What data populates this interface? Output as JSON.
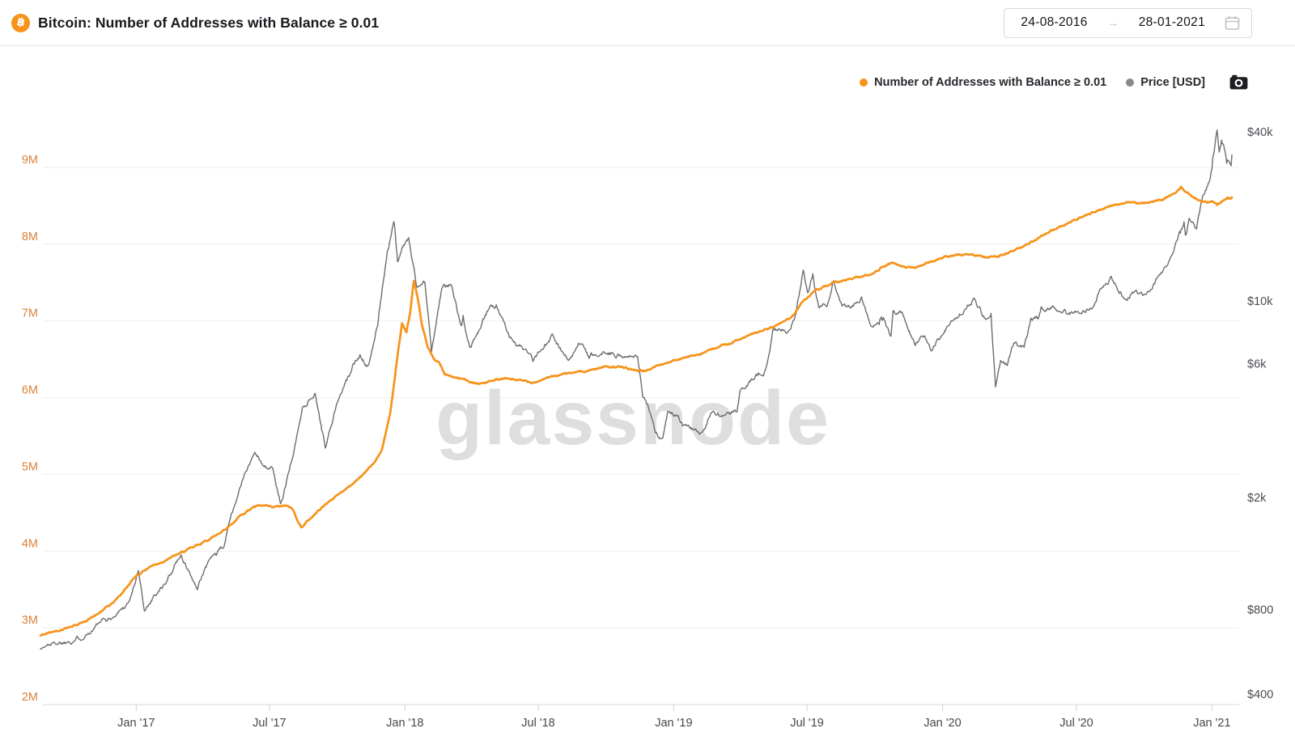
{
  "header": {
    "title": "Bitcoin: Number of Addresses with Balance ≥ 0.01",
    "date_range": {
      "start": "24-08-2016",
      "end": "28-01-2021",
      "arrow": "→"
    }
  },
  "legend": [
    {
      "label": "Number of Addresses with Balance ≥ 0.01",
      "color": "#f7931a"
    },
    {
      "label": "Price [USD]",
      "color": "#8a8a8e"
    }
  ],
  "watermark": "glassnode",
  "chart_data": {
    "type": "line",
    "title": "Bitcoin: Number of Addresses with Balance ≥ 0.01",
    "x_range": [
      "2016-08-24",
      "2021-01-28"
    ],
    "grid": "horizontal",
    "x_ticks": [
      {
        "date": "2017-01-01",
        "label": "Jan '17"
      },
      {
        "date": "2017-07-01",
        "label": "Jul '17"
      },
      {
        "date": "2018-01-01",
        "label": "Jan '18"
      },
      {
        "date": "2018-07-01",
        "label": "Jul '18"
      },
      {
        "date": "2019-01-01",
        "label": "Jan '19"
      },
      {
        "date": "2019-07-01",
        "label": "Jul '19"
      },
      {
        "date": "2020-01-01",
        "label": "Jan '20"
      },
      {
        "date": "2020-07-01",
        "label": "Jul '20"
      },
      {
        "date": "2021-01-01",
        "label": "Jan '21"
      }
    ],
    "left_axis": {
      "scale": "linear",
      "unit": "millions of addresses",
      "range": [
        2,
        9.6
      ],
      "label_color": "#d9813a",
      "ticks": [
        {
          "value": 9,
          "label": "9M"
        },
        {
          "value": 8,
          "label": "8M"
        },
        {
          "value": 7,
          "label": "7M"
        },
        {
          "value": 6,
          "label": "6M"
        },
        {
          "value": 5,
          "label": "5M"
        },
        {
          "value": 4,
          "label": "4M"
        },
        {
          "value": 3,
          "label": "3M"
        },
        {
          "value": 2,
          "label": "2M"
        }
      ]
    },
    "right_axis": {
      "scale": "log",
      "unit": "USD",
      "range": [
        400,
        45000
      ],
      "label_color": "#4a4d52",
      "ticks": [
        {
          "value": 40000,
          "label": "$40k"
        },
        {
          "value": 10000,
          "label": "$10k"
        },
        {
          "value": 6000,
          "label": "$6k"
        },
        {
          "value": 2000,
          "label": "$2k"
        },
        {
          "value": 800,
          "label": "$800"
        },
        {
          "value": 400,
          "label": "$400"
        }
      ]
    },
    "series": [
      {
        "name": "Number of Addresses with Balance ≥ 0.01",
        "axis": "left",
        "color": "#f7931a",
        "width": 2.7,
        "unit": "millions",
        "points": [
          [
            "2016-08-24",
            2.9
          ],
          [
            "2016-09-10",
            2.95
          ],
          [
            "2016-10-01",
            3.01
          ],
          [
            "2016-10-20",
            3.07
          ],
          [
            "2016-11-10",
            3.18
          ],
          [
            "2016-12-01",
            3.33
          ],
          [
            "2016-12-15",
            3.48
          ],
          [
            "2017-01-01",
            3.68
          ],
          [
            "2017-01-20",
            3.8
          ],
          [
            "2017-02-10",
            3.88
          ],
          [
            "2017-03-01",
            3.97
          ],
          [
            "2017-03-20",
            4.05
          ],
          [
            "2017-04-01",
            4.11
          ],
          [
            "2017-04-20",
            4.21
          ],
          [
            "2017-05-10",
            4.35
          ],
          [
            "2017-05-25",
            4.48
          ],
          [
            "2017-06-08",
            4.57
          ],
          [
            "2017-06-20",
            4.59
          ],
          [
            "2017-07-05",
            4.57
          ],
          [
            "2017-07-25",
            4.59
          ],
          [
            "2017-08-01",
            4.55
          ],
          [
            "2017-08-13",
            4.31
          ],
          [
            "2017-08-25",
            4.42
          ],
          [
            "2017-09-10",
            4.57
          ],
          [
            "2017-10-01",
            4.73
          ],
          [
            "2017-10-20",
            4.86
          ],
          [
            "2017-11-05",
            5.0
          ],
          [
            "2017-11-20",
            5.15
          ],
          [
            "2017-12-01",
            5.33
          ],
          [
            "2017-12-12",
            5.8
          ],
          [
            "2017-12-22",
            6.55
          ],
          [
            "2017-12-28",
            6.97
          ],
          [
            "2018-01-03",
            6.85
          ],
          [
            "2018-01-08",
            7.1
          ],
          [
            "2018-01-13",
            7.52
          ],
          [
            "2018-01-17",
            7.35
          ],
          [
            "2018-01-24",
            6.95
          ],
          [
            "2018-02-01",
            6.65
          ],
          [
            "2018-02-10",
            6.5
          ],
          [
            "2018-02-17",
            6.45
          ],
          [
            "2018-02-24",
            6.3
          ],
          [
            "2018-03-10",
            6.26
          ],
          [
            "2018-03-25",
            6.23
          ],
          [
            "2018-04-12",
            6.18
          ],
          [
            "2018-05-01",
            6.22
          ],
          [
            "2018-05-20",
            6.25
          ],
          [
            "2018-06-10",
            6.22
          ],
          [
            "2018-06-25",
            6.2
          ],
          [
            "2018-07-10",
            6.25
          ],
          [
            "2018-08-01",
            6.3
          ],
          [
            "2018-08-20",
            6.33
          ],
          [
            "2018-09-10",
            6.36
          ],
          [
            "2018-10-01",
            6.41
          ],
          [
            "2018-10-20",
            6.4
          ],
          [
            "2018-11-08",
            6.36
          ],
          [
            "2018-11-25",
            6.35
          ],
          [
            "2018-12-10",
            6.42
          ],
          [
            "2018-12-25",
            6.46
          ],
          [
            "2019-01-10",
            6.5
          ],
          [
            "2019-02-01",
            6.56
          ],
          [
            "2019-03-01",
            6.65
          ],
          [
            "2019-04-01",
            6.76
          ],
          [
            "2019-05-01",
            6.87
          ],
          [
            "2019-05-20",
            6.94
          ],
          [
            "2019-06-10",
            7.05
          ],
          [
            "2019-06-25",
            7.25
          ],
          [
            "2019-07-10",
            7.38
          ],
          [
            "2019-08-01",
            7.47
          ],
          [
            "2019-08-20",
            7.53
          ],
          [
            "2019-09-10",
            7.57
          ],
          [
            "2019-09-25",
            7.6
          ],
          [
            "2019-10-10",
            7.7
          ],
          [
            "2019-10-25",
            7.76
          ],
          [
            "2019-11-10",
            7.71
          ],
          [
            "2019-11-25",
            7.69
          ],
          [
            "2019-12-10",
            7.76
          ],
          [
            "2019-12-25",
            7.8
          ],
          [
            "2020-01-10",
            7.84
          ],
          [
            "2020-02-01",
            7.87
          ],
          [
            "2020-02-20",
            7.85
          ],
          [
            "2020-03-10",
            7.84
          ],
          [
            "2020-03-20",
            7.86
          ],
          [
            "2020-04-05",
            7.91
          ],
          [
            "2020-04-20",
            7.97
          ],
          [
            "2020-05-05",
            8.05
          ],
          [
            "2020-05-20",
            8.13
          ],
          [
            "2020-06-05",
            8.21
          ],
          [
            "2020-06-20",
            8.28
          ],
          [
            "2020-07-10",
            8.36
          ],
          [
            "2020-08-01",
            8.45
          ],
          [
            "2020-08-20",
            8.51
          ],
          [
            "2020-09-10",
            8.55
          ],
          [
            "2020-09-25",
            8.53
          ],
          [
            "2020-10-10",
            8.55
          ],
          [
            "2020-10-25",
            8.57
          ],
          [
            "2020-11-10",
            8.66
          ],
          [
            "2020-11-20",
            8.75
          ],
          [
            "2020-11-27",
            8.68
          ],
          [
            "2020-12-05",
            8.62
          ],
          [
            "2020-12-15",
            8.57
          ],
          [
            "2020-12-25",
            8.54
          ],
          [
            "2021-01-01",
            8.56
          ],
          [
            "2021-01-08",
            8.51
          ],
          [
            "2021-01-15",
            8.56
          ],
          [
            "2021-01-22",
            8.61
          ],
          [
            "2021-01-28",
            8.61
          ]
        ]
      },
      {
        "name": "Price [USD]",
        "axis": "right",
        "color": "#6d6d70",
        "width": 1.4,
        "unit": "USD",
        "points": [
          [
            "2016-08-24",
            580
          ],
          [
            "2016-09-10",
            610
          ],
          [
            "2016-10-01",
            615
          ],
          [
            "2016-10-25",
            650
          ],
          [
            "2016-11-10",
            712
          ],
          [
            "2016-12-01",
            750
          ],
          [
            "2016-12-23",
            860
          ],
          [
            "2017-01-04",
            1100
          ],
          [
            "2017-01-12",
            790
          ],
          [
            "2017-01-25",
            900
          ],
          [
            "2017-02-10",
            985
          ],
          [
            "2017-02-24",
            1180
          ],
          [
            "2017-03-03",
            1250
          ],
          [
            "2017-03-25",
            940
          ],
          [
            "2017-04-10",
            1200
          ],
          [
            "2017-04-30",
            1330
          ],
          [
            "2017-05-10",
            1750
          ],
          [
            "2017-05-25",
            2300
          ],
          [
            "2017-06-11",
            2900
          ],
          [
            "2017-06-20",
            2650
          ],
          [
            "2017-07-05",
            2550
          ],
          [
            "2017-07-16",
            1900
          ],
          [
            "2017-08-01",
            2750
          ],
          [
            "2017-08-15",
            4200
          ],
          [
            "2017-09-01",
            4700
          ],
          [
            "2017-09-15",
            3000
          ],
          [
            "2017-10-01",
            4350
          ],
          [
            "2017-10-20",
            5600
          ],
          [
            "2017-11-01",
            6450
          ],
          [
            "2017-11-12",
            5900
          ],
          [
            "2017-11-25",
            8200
          ],
          [
            "2017-12-08",
            15000
          ],
          [
            "2017-12-17",
            19200
          ],
          [
            "2017-12-22",
            13800
          ],
          [
            "2017-12-28",
            15500
          ],
          [
            "2018-01-06",
            16800
          ],
          [
            "2018-01-17",
            11200
          ],
          [
            "2018-01-28",
            11700
          ],
          [
            "2018-02-06",
            6600
          ],
          [
            "2018-02-20",
            11100
          ],
          [
            "2018-03-05",
            11400
          ],
          [
            "2018-03-18",
            8200
          ],
          [
            "2018-03-21",
            8900
          ],
          [
            "2018-03-30",
            6850
          ],
          [
            "2018-04-12",
            7900
          ],
          [
            "2018-04-24",
            9300
          ],
          [
            "2018-05-05",
            9700
          ],
          [
            "2018-05-28",
            7200
          ],
          [
            "2018-06-10",
            6750
          ],
          [
            "2018-06-24",
            6100
          ],
          [
            "2018-07-08",
            6750
          ],
          [
            "2018-07-20",
            7650
          ],
          [
            "2018-08-11",
            6150
          ],
          [
            "2018-08-28",
            7050
          ],
          [
            "2018-09-08",
            6250
          ],
          [
            "2018-09-25",
            6450
          ],
          [
            "2018-10-10",
            6550
          ],
          [
            "2018-10-29",
            6350
          ],
          [
            "2018-11-13",
            6350
          ],
          [
            "2018-11-20",
            4550
          ],
          [
            "2018-11-28",
            4150
          ],
          [
            "2018-12-07",
            3400
          ],
          [
            "2018-12-17",
            3250
          ],
          [
            "2018-12-24",
            4050
          ],
          [
            "2019-01-06",
            3900
          ],
          [
            "2019-01-13",
            3600
          ],
          [
            "2019-01-28",
            3480
          ],
          [
            "2019-02-07",
            3400
          ],
          [
            "2019-02-23",
            4050
          ],
          [
            "2019-03-10",
            3920
          ],
          [
            "2019-03-28",
            4030
          ],
          [
            "2019-04-02",
            4850
          ],
          [
            "2019-04-23",
            5500
          ],
          [
            "2019-05-06",
            5750
          ],
          [
            "2019-05-16",
            8000
          ],
          [
            "2019-05-25",
            7950
          ],
          [
            "2019-06-04",
            7700
          ],
          [
            "2019-06-16",
            9000
          ],
          [
            "2019-06-26",
            12900
          ],
          [
            "2019-07-02",
            10700
          ],
          [
            "2019-07-09",
            12500
          ],
          [
            "2019-07-17",
            9500
          ],
          [
            "2019-07-28",
            9550
          ],
          [
            "2019-08-06",
            11800
          ],
          [
            "2019-08-15",
            10000
          ],
          [
            "2019-08-29",
            9450
          ],
          [
            "2019-09-13",
            10350
          ],
          [
            "2019-09-26",
            8150
          ],
          [
            "2019-10-07",
            8250
          ],
          [
            "2019-10-11",
            8550
          ],
          [
            "2019-10-23",
            7500
          ],
          [
            "2019-10-26",
            9250
          ],
          [
            "2019-11-07",
            9150
          ],
          [
            "2019-11-25",
            6950
          ],
          [
            "2019-12-06",
            7450
          ],
          [
            "2019-12-17",
            6650
          ],
          [
            "2019-12-28",
            7300
          ],
          [
            "2020-01-07",
            8100
          ],
          [
            "2020-01-19",
            8650
          ],
          [
            "2020-02-01",
            9350
          ],
          [
            "2020-02-13",
            10250
          ],
          [
            "2020-02-26",
            8850
          ],
          [
            "2020-03-07",
            9050
          ],
          [
            "2020-03-13",
            4950
          ],
          [
            "2020-03-20",
            6150
          ],
          [
            "2020-03-29",
            5900
          ],
          [
            "2020-04-07",
            7100
          ],
          [
            "2020-04-21",
            6850
          ],
          [
            "2020-04-30",
            8700
          ],
          [
            "2020-05-10",
            8650
          ],
          [
            "2020-05-14",
            9550
          ],
          [
            "2020-06-01",
            9500
          ],
          [
            "2020-06-15",
            9350
          ],
          [
            "2020-06-27",
            9050
          ],
          [
            "2020-07-10",
            9250
          ],
          [
            "2020-07-24",
            9550
          ],
          [
            "2020-08-02",
            11050
          ],
          [
            "2020-08-17",
            12250
          ],
          [
            "2020-09-05",
            10150
          ],
          [
            "2020-09-20",
            10950
          ],
          [
            "2020-09-25",
            10700
          ],
          [
            "2020-10-02",
            10550
          ],
          [
            "2020-10-21",
            12300
          ],
          [
            "2020-11-05",
            14100
          ],
          [
            "2020-11-18",
            17700
          ],
          [
            "2020-11-24",
            19150
          ],
          [
            "2020-11-26",
            17150
          ],
          [
            "2020-12-01",
            19700
          ],
          [
            "2020-12-11",
            18050
          ],
          [
            "2020-12-19",
            23400
          ],
          [
            "2020-12-27",
            26300
          ],
          [
            "2020-12-31",
            29000
          ],
          [
            "2021-01-02",
            32200
          ],
          [
            "2021-01-08",
            40600
          ],
          [
            "2021-01-11",
            33900
          ],
          [
            "2021-01-14",
            37400
          ],
          [
            "2021-01-17",
            35800
          ],
          [
            "2021-01-21",
            30900
          ],
          [
            "2021-01-27",
            30300
          ],
          [
            "2021-01-28",
            33100
          ]
        ]
      }
    ]
  }
}
